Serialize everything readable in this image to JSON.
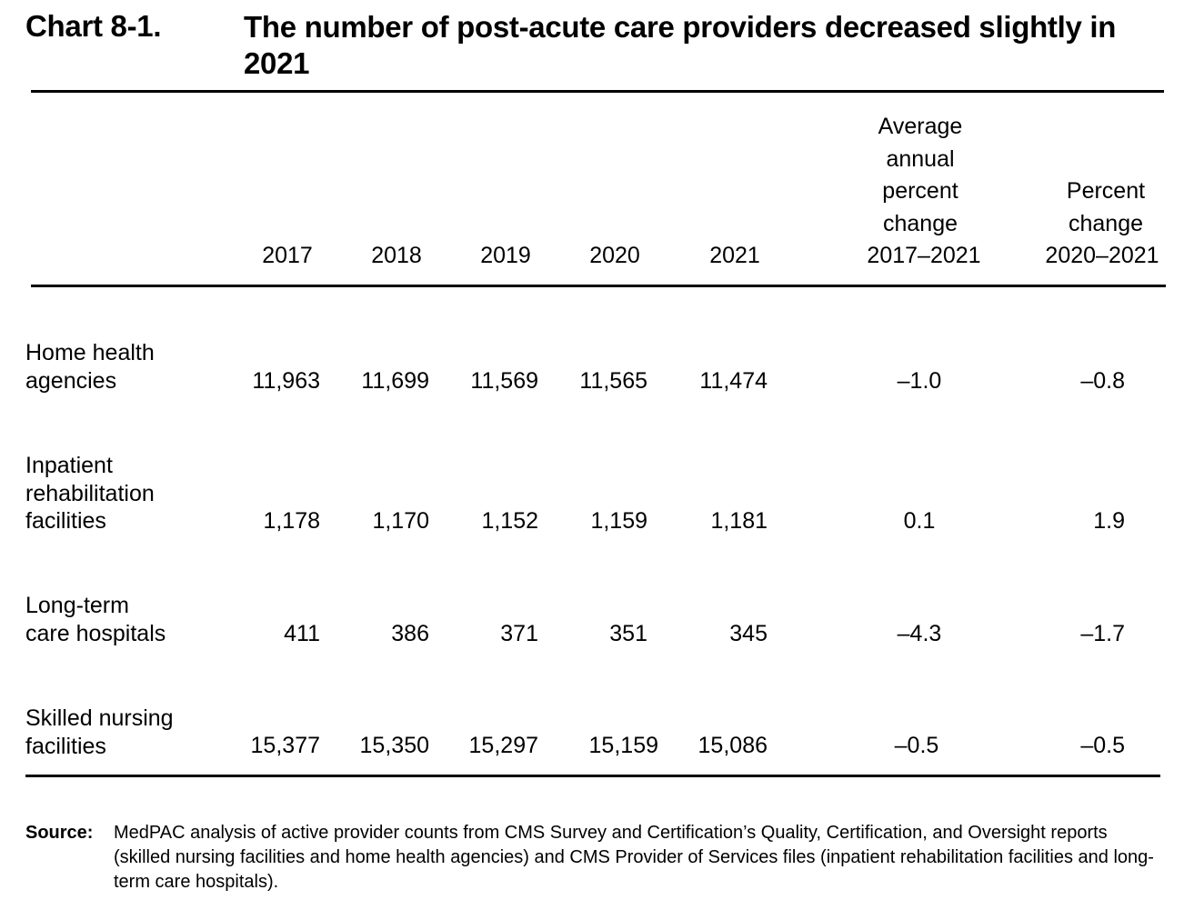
{
  "chart": {
    "label": "Chart 8-1.",
    "title": "The number of post-acute care providers decreased slightly in 2021"
  },
  "table": {
    "columns": {
      "y2017": "2017",
      "y2018": "2018",
      "y2019": "2019",
      "y2020": "2020",
      "y2021": "2021",
      "avg_line1": "Average",
      "avg_line2": "annual",
      "avg_line3": "percent",
      "avg_line4": "change",
      "avg_line5": "2017–2021",
      "pct_line1": "Percent",
      "pct_line2": "change",
      "pct_line3": "2020–2021"
    },
    "rows": [
      {
        "label_lines": [
          "Home health",
          "agencies"
        ],
        "values": [
          "11,963",
          "11,699",
          "11,569",
          "11,565",
          "11,474"
        ],
        "avg_change": "–1.0",
        "pct_change": "–0.8"
      },
      {
        "label_lines": [
          "Inpatient",
          "rehabilitation",
          "facilities"
        ],
        "values": [
          "1,178",
          "1,170",
          "1,152",
          "1,159",
          "1,181"
        ],
        "avg_change": "0.1",
        "pct_change": "1.9"
      },
      {
        "label_lines": [
          "Long-term",
          "care hospitals"
        ],
        "values": [
          "411",
          "386",
          "371",
          "351",
          "345"
        ],
        "avg_change": "–4.3",
        "pct_change": "–1.7"
      },
      {
        "label_lines": [
          "Skilled nursing",
          "facilities"
        ],
        "values": [
          "15,377",
          "15,350",
          "15,297",
          "15,159",
          "15,086"
        ],
        "avg_change": "–0.5",
        "pct_change": "–0.5"
      }
    ]
  },
  "source": {
    "key": "Source:",
    "text": "MedPAC analysis of active provider counts from CMS Survey and Certification’s Quality, Certification, and Oversight reports (skilled nursing facilities and home health agencies) and CMS Provider of Services files (inpatient rehabilitation facilities and long-term care hospitals)."
  }
}
